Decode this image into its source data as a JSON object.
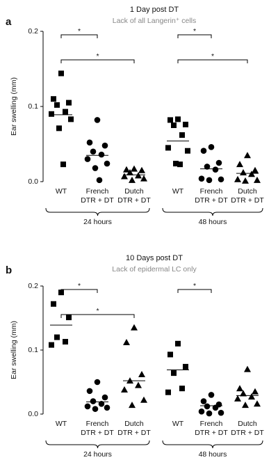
{
  "chart_data": [
    {
      "type": "dotplot",
      "panel": "a",
      "title": "1 Day post DT",
      "subtitle": "Lack of all Langerin⁺ cells",
      "ylabel": "Ear swelling (mm)",
      "color": "#000000",
      "categories": [
        [
          "WT"
        ],
        [
          "French",
          "DTR + DT"
        ],
        [
          "Dutch",
          "DTR + DT"
        ],
        [
          "WT"
        ],
        [
          "French",
          "DTR + DT"
        ],
        [
          "Dutch",
          "DTR + DT"
        ]
      ],
      "markers": [
        "square",
        "circle",
        "triangle",
        "square",
        "circle",
        "triangle"
      ],
      "values": [
        [
          0.144,
          0.11,
          0.105,
          0.102,
          0.093,
          0.09,
          0.083,
          0.071,
          0.023
        ],
        [
          0.082,
          0.052,
          0.048,
          0.04,
          0.036,
          0.03,
          0.024,
          0.018,
          0.002
        ],
        [
          0.017,
          0.016,
          0.015,
          0.012,
          0.008,
          0.007,
          0.004,
          0.002
        ],
        [
          0.083,
          0.082,
          0.076,
          0.075,
          0.062,
          0.045,
          0.041,
          0.024,
          0.023
        ],
        [
          0.046,
          0.041,
          0.025,
          0.02,
          0.016,
          0.004,
          0.003,
          0.002
        ],
        [
          0.035,
          0.023,
          0.015,
          0.012,
          0.01,
          0.003,
          0.002,
          0.001
        ]
      ],
      "means": [
        0.089,
        0.035,
        0.009,
        0.054,
        0.017,
        0.011
      ],
      "groups": [
        {
          "label": "24 hours",
          "categories": [
            0,
            2
          ]
        },
        {
          "label": "48 hours",
          "categories": [
            3,
            5
          ]
        }
      ],
      "significance": [
        {
          "label": "*",
          "pair": [
            0,
            1
          ]
        },
        {
          "label": "*",
          "pair": [
            0,
            2
          ]
        },
        {
          "label": "*",
          "pair": [
            3,
            4
          ]
        },
        {
          "label": "*",
          "pair": [
            3,
            5
          ]
        }
      ],
      "ylim": [
        0,
        0.2
      ],
      "yticks": [
        {
          "value": 0,
          "label": "0.0"
        },
        0.1,
        0.2
      ]
    },
    {
      "type": "dotplot",
      "panel": "b",
      "title": "10 Days post DT",
      "subtitle": "Lack of epidermal LC only",
      "ylabel": "Ear swelling (mm)",
      "color": "#000000",
      "categories": [
        [
          "WT"
        ],
        [
          "French",
          "DTR + DT"
        ],
        [
          "Dutch",
          "DTR + DT"
        ],
        [
          "WT"
        ],
        [
          "French",
          "DTR + DT"
        ],
        [
          "Dutch",
          "DTR + DT"
        ]
      ],
      "markers": [
        "square",
        "circle",
        "triangle",
        "square",
        "circle",
        "triangle"
      ],
      "values": [
        [
          0.19,
          0.172,
          0.151,
          0.12,
          0.113,
          0.108
        ],
        [
          0.05,
          0.036,
          0.026,
          0.02,
          0.016,
          0.012,
          0.01,
          0.008
        ],
        [
          0.135,
          0.112,
          0.062,
          0.052,
          0.045,
          0.038,
          0.022,
          0.014
        ],
        [
          0.11,
          0.093,
          0.074,
          0.064,
          0.04,
          0.034
        ],
        [
          0.03,
          0.02,
          0.015,
          0.012,
          0.01,
          0.004,
          0.002,
          0.001
        ],
        [
          0.07,
          0.04,
          0.035,
          0.032,
          0.027,
          0.024,
          0.016,
          0.014
        ]
      ],
      "means": [
        0.139,
        0.019,
        0.052,
        0.069,
        0.013,
        0.029
      ],
      "groups": [
        {
          "label": "24 hours",
          "categories": [
            0,
            2
          ]
        },
        {
          "label": "48 hours",
          "categories": [
            3,
            5
          ]
        }
      ],
      "significance": [
        {
          "label": "*",
          "pair": [
            0,
            1
          ]
        },
        {
          "label": "*",
          "pair": [
            0,
            2
          ]
        },
        {
          "label": "*",
          "pair": [
            3,
            4
          ]
        }
      ],
      "ylim": [
        0,
        0.2
      ],
      "yticks": [
        {
          "value": 0,
          "label": "0.0"
        },
        0.1,
        0.2
      ]
    }
  ]
}
